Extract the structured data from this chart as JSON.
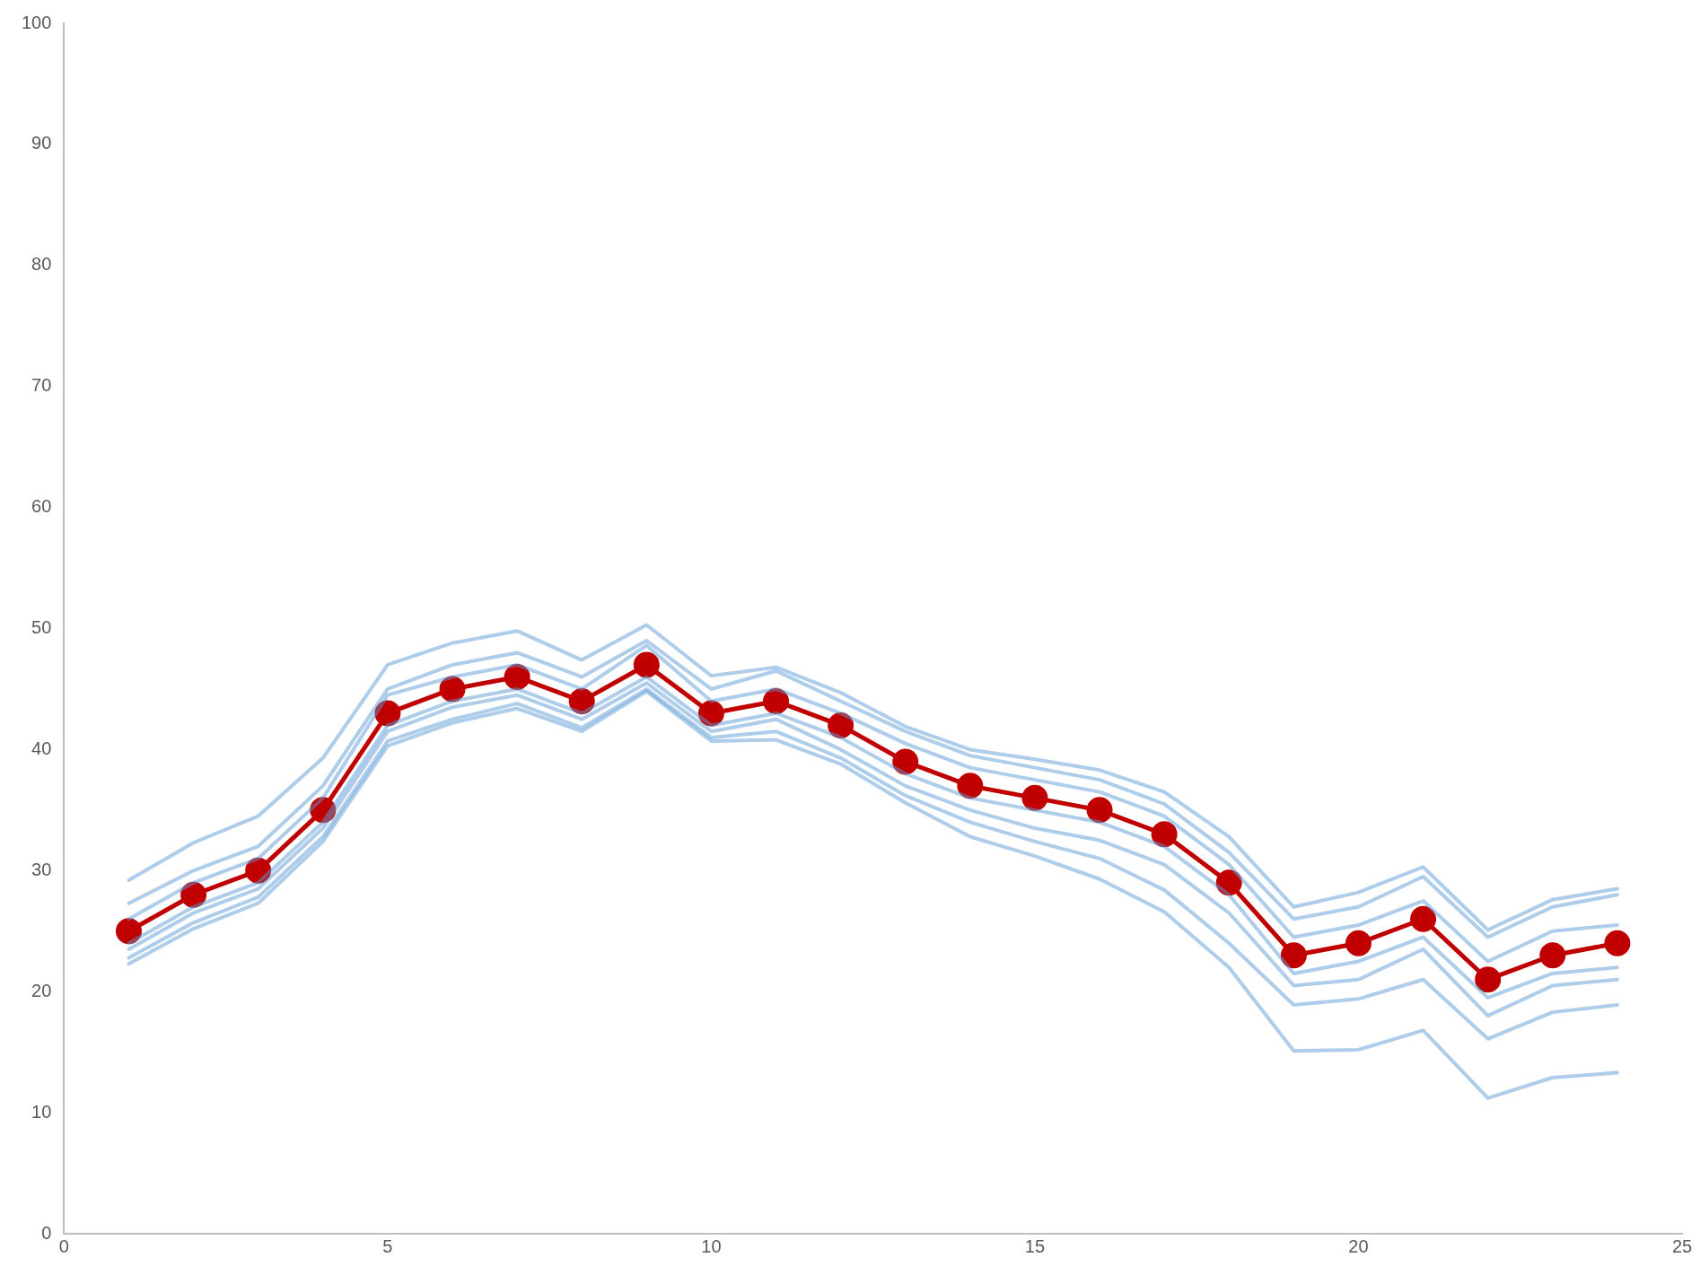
{
  "chart_data": {
    "type": "line",
    "x": [
      1,
      2,
      3,
      4,
      5,
      6,
      7,
      8,
      9,
      10,
      11,
      12,
      13,
      14,
      15,
      16,
      17,
      18,
      19,
      20,
      21,
      22,
      23,
      24
    ],
    "series": [
      {
        "color": "#5b9bd5",
        "marker": "none",
        "values": [
          29.2,
          32.3,
          34.5,
          39.3,
          47,
          48.8,
          49.8,
          47.4,
          50.3,
          46.1,
          46.8,
          44.7,
          41.9,
          40,
          39.2,
          38.3,
          36.5,
          32.8,
          27,
          28.2,
          30.3,
          25.1,
          27.6,
          28.5
        ]
      },
      {
        "color": "#5b9bd5",
        "marker": "none",
        "values": [
          27.3,
          30,
          32,
          37,
          45,
          47,
          48,
          46,
          49,
          45,
          46.5,
          44,
          41.5,
          39.5,
          38.5,
          37.5,
          35.5,
          31.5,
          26,
          27,
          29.5,
          24.5,
          27,
          28
        ]
      },
      {
        "color": "#5b9bd5",
        "marker": "none",
        "values": [
          26,
          29,
          31,
          36,
          44.5,
          46,
          47,
          45,
          48.6,
          44,
          45,
          43,
          40.5,
          38.5,
          37.5,
          36.5,
          34.5,
          30.5,
          24.5,
          25.5,
          27.5,
          22.5,
          25,
          25.5
        ]
      },
      {
        "color": "#5b9bd5",
        "marker": "none",
        "values": [
          24,
          27,
          29,
          34,
          42,
          44,
          45,
          43,
          46,
          42,
          43,
          41,
          38,
          36,
          35,
          34,
          32,
          28,
          21.5,
          22.5,
          24.5,
          19.5,
          21.5,
          22
        ]
      },
      {
        "color": "#5b9bd5",
        "marker": "none",
        "values": [
          23.5,
          26.5,
          28.5,
          33.5,
          41.5,
          43.5,
          44.5,
          42.5,
          45.5,
          41.5,
          42.5,
          40,
          37,
          35,
          33.5,
          32.5,
          30.5,
          26.5,
          20.5,
          21,
          23.5,
          18,
          20.5,
          21
        ]
      },
      {
        "color": "#5b9bd5",
        "marker": "none",
        "values": [
          22.8,
          25.7,
          27.8,
          32.8,
          40.7,
          42.5,
          43.8,
          41.8,
          45,
          41,
          41.5,
          39.3,
          36.2,
          34,
          32.4,
          31,
          28.4,
          24,
          18.9,
          19.4,
          21,
          16.1,
          18.3,
          18.9
        ]
      },
      {
        "color": "#5b9bd5",
        "marker": "none",
        "values": [
          22.3,
          25.2,
          27.3,
          32.4,
          40.3,
          42.2,
          43.4,
          41.5,
          44.8,
          40.7,
          40.8,
          38.8,
          35.6,
          32.8,
          31.2,
          29.3,
          26.6,
          22,
          15.1,
          15.2,
          16.8,
          11.2,
          12.9,
          13.3
        ]
      },
      {
        "color": "#c00000",
        "marker": "circle",
        "values": [
          25,
          28,
          30,
          35,
          43,
          45,
          46,
          44,
          47,
          43,
          44,
          42,
          39,
          37,
          36,
          35,
          33,
          29,
          23,
          24,
          26,
          21,
          23,
          24
        ]
      }
    ],
    "xlim": [
      0,
      25
    ],
    "xticks": [
      0,
      5,
      10,
      15,
      20,
      25
    ],
    "ylim": [
      0,
      100
    ],
    "yticks": [
      0,
      10,
      20,
      30,
      40,
      50,
      60,
      70,
      80,
      90,
      100
    ],
    "grid": false,
    "legend": false
  }
}
